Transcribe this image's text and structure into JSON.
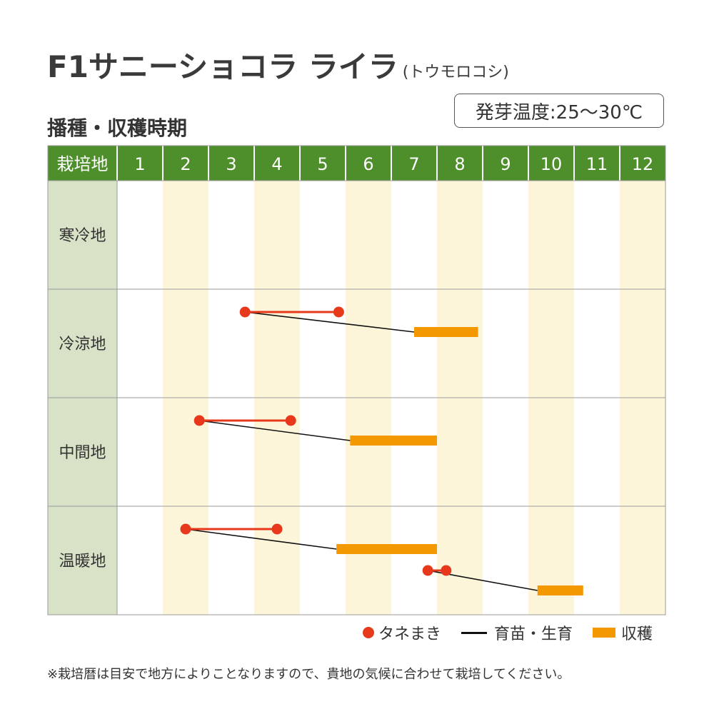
{
  "title": {
    "main": "F1サニーショコラ ライラ",
    "sub": "(トウモロコシ)"
  },
  "germination_label": "発芽温度:25〜30℃",
  "subtitle": "播種・収穫時期",
  "colors": {
    "header_green": "#4e8f2c",
    "region_cell": "#d8e2c7",
    "alt_month": "#fcf5da",
    "sowing": "#e8381b",
    "growing": "#111111",
    "harvest": "#f39800",
    "grid": "#9a9a9a"
  },
  "chart_data": {
    "type": "timeline",
    "header_label": "栽培地",
    "months": [
      "1",
      "2",
      "3",
      "4",
      "5",
      "6",
      "7",
      "8",
      "9",
      "10",
      "11",
      "12"
    ],
    "regions": [
      {
        "name": "寒冷地",
        "segments": []
      },
      {
        "name": "冷涼地",
        "segments": [
          {
            "type": "sowing",
            "start": 3.8,
            "end": 5.85,
            "lane": 0
          },
          {
            "type": "growing",
            "from": 3.8,
            "from_lane": 0,
            "to": 7.5,
            "to_lane": 1
          },
          {
            "type": "harvest",
            "start": 7.5,
            "end": 8.9,
            "lane": 1
          }
        ]
      },
      {
        "name": "中間地",
        "segments": [
          {
            "type": "sowing",
            "start": 2.8,
            "end": 4.8,
            "lane": 0
          },
          {
            "type": "growing",
            "from": 2.8,
            "from_lane": 0,
            "to": 6.1,
            "to_lane": 1
          },
          {
            "type": "harvest",
            "start": 6.1,
            "end": 8.0,
            "lane": 1
          }
        ]
      },
      {
        "name": "温暖地",
        "segments": [
          {
            "type": "sowing",
            "start": 2.5,
            "end": 4.5,
            "lane": 0
          },
          {
            "type": "growing",
            "from": 2.5,
            "from_lane": 0,
            "to": 5.8,
            "to_lane": 1
          },
          {
            "type": "harvest",
            "start": 5.8,
            "end": 8.0,
            "lane": 1
          },
          {
            "type": "sowing",
            "start": 7.8,
            "end": 8.2,
            "lane": 2
          },
          {
            "type": "growing",
            "from": 7.8,
            "from_lane": 2,
            "to": 10.2,
            "to_lane": 3
          },
          {
            "type": "harvest",
            "start": 10.2,
            "end": 11.2,
            "lane": 3
          }
        ]
      }
    ]
  },
  "legend": {
    "sowing": "タネまき",
    "growing": "育苗・生育",
    "harvest": "収穫"
  },
  "note": "※栽培暦は目安で地方によりことなりますので、貴地の気候に合わせて栽培してください。"
}
